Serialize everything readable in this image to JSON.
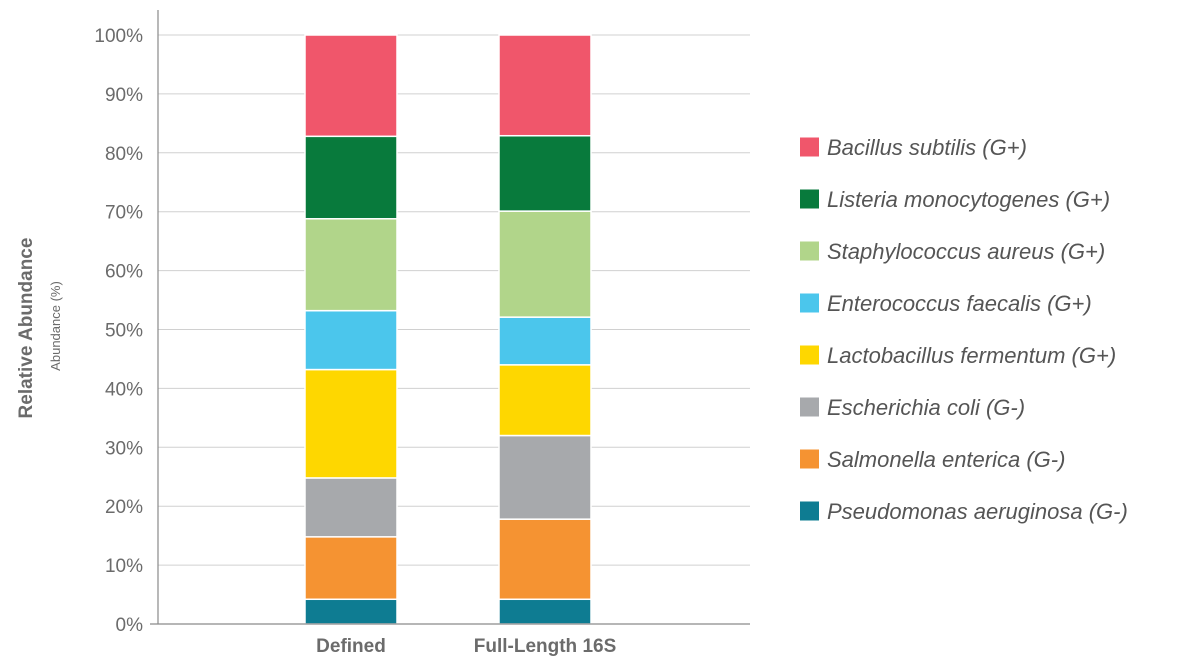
{
  "chart_data": {
    "type": "bar",
    "stacked": true,
    "categories": [
      "Defined",
      "Full-Length 16S"
    ],
    "y_tick_labels": [
      "0%",
      "10%",
      "20%",
      "30%",
      "40%",
      "50%",
      "60%",
      "70%",
      "80%",
      "90%",
      "100%"
    ],
    "ylim": [
      0,
      100
    ],
    "ylabel": "Relative Abundance",
    "ylabel_sub": "Abundance (%)",
    "xlabel": "",
    "grid": true,
    "legend_position": "right",
    "series": [
      {
        "name": "Pseudomonas aeruginosa (G-)",
        "color": "#0e7c92",
        "values": [
          4.2,
          4.2
        ]
      },
      {
        "name": "Salmonella enterica (G-)",
        "color": "#f59332",
        "values": [
          10.6,
          13.6
        ]
      },
      {
        "name": "Escherichia coli (G-)",
        "color": "#a7a9ac",
        "values": [
          10.0,
          14.2
        ]
      },
      {
        "name": "Lactobacillus fermentum (G+)",
        "color": "#fed700",
        "values": [
          18.4,
          12.0
        ]
      },
      {
        "name": "Enterococcus faecalis (G+)",
        "color": "#4bc6ec",
        "values": [
          10.0,
          8.1
        ]
      },
      {
        "name": "Staphylococcus aureus (G+)",
        "color": "#b1d58a",
        "values": [
          15.6,
          18.0
        ]
      },
      {
        "name": "Listeria monocytogenes (G+)",
        "color": "#087a3c",
        "values": [
          14.0,
          12.8
        ]
      },
      {
        "name": "Bacillus subtilis (G+)",
        "color": "#f0566b",
        "values": [
          17.2,
          17.1
        ]
      }
    ]
  }
}
